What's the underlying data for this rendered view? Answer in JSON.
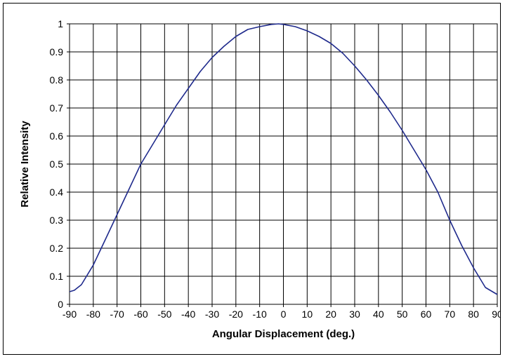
{
  "chart_data": {
    "type": "line",
    "title": "",
    "xlabel": "Angular Displacement (deg.)",
    "ylabel": "Relative Intensity",
    "xlim": [
      -90,
      90
    ],
    "ylim": [
      0,
      1
    ],
    "x_ticks": [
      "-90",
      "-80",
      "-70",
      "-60",
      "-50",
      "-40",
      "-30",
      "-20",
      "-10",
      "0",
      "10",
      "20",
      "30",
      "40",
      "50",
      "60",
      "70",
      "80",
      "90"
    ],
    "y_ticks": [
      "0",
      "0.1",
      "0.2",
      "0.3",
      "0.4",
      "0.5",
      "0.6",
      "0.7",
      "0.8",
      "0.9",
      "1"
    ],
    "grid": true,
    "legend": "none",
    "series": [
      {
        "color": "#1f2a8c",
        "x": [
          -90,
          -88,
          -85,
          -80,
          -75,
          -70,
          -65,
          -60,
          -55,
          -50,
          -45,
          -40,
          -35,
          -30,
          -25,
          -20,
          -15,
          -10,
          -5,
          -2,
          0,
          5,
          10,
          15,
          20,
          25,
          30,
          35,
          40,
          45,
          50,
          55,
          60,
          65,
          70,
          75,
          80,
          85,
          88,
          90
        ],
        "y": [
          0.045,
          0.05,
          0.07,
          0.14,
          0.23,
          0.32,
          0.41,
          0.5,
          0.57,
          0.64,
          0.71,
          0.77,
          0.83,
          0.88,
          0.92,
          0.955,
          0.98,
          0.99,
          0.998,
          1.0,
          0.998,
          0.99,
          0.975,
          0.955,
          0.93,
          0.895,
          0.85,
          0.8,
          0.745,
          0.685,
          0.62,
          0.55,
          0.48,
          0.4,
          0.3,
          0.21,
          0.13,
          0.06,
          0.045,
          0.035
        ]
      }
    ]
  }
}
